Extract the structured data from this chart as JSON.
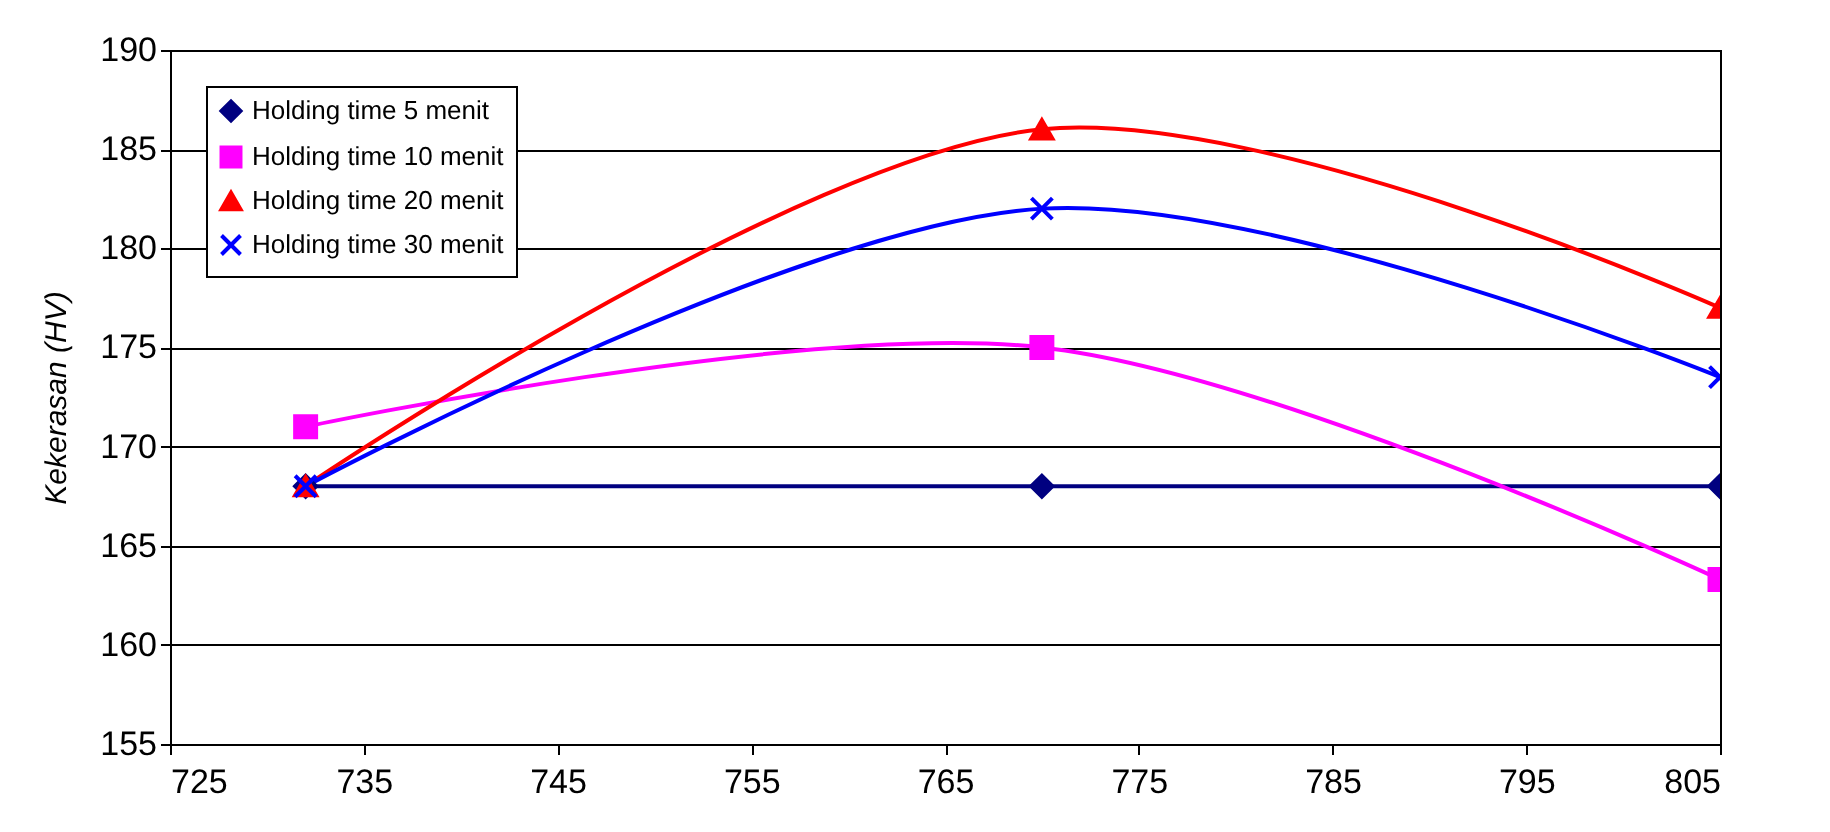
{
  "chart_data": {
    "type": "line",
    "ylabel": "Kekerasan (HV)",
    "x": [
      732,
      770,
      805
    ],
    "series": [
      {
        "name": "Holding time 5 menit",
        "color": "#000080",
        "marker": "diamond",
        "values": [
          168,
          168,
          168
        ]
      },
      {
        "name": "Holding time 10 menit",
        "color": "#ff00ff",
        "marker": "square",
        "values": [
          171,
          175,
          163.3
        ]
      },
      {
        "name": "Holding time 20 menit",
        "color": "#ff0000",
        "marker": "triangle",
        "values": [
          168,
          186,
          177
        ]
      },
      {
        "name": "Holding time 30 menit",
        "color": "#0000ff",
        "marker": "cross",
        "values": [
          168,
          182,
          173.5
        ]
      }
    ],
    "xlim": [
      725,
      805
    ],
    "xticks": [
      725,
      735,
      745,
      755,
      765,
      775,
      785,
      795,
      805
    ],
    "ylim": [
      155,
      190
    ],
    "yticks": [
      155,
      160,
      165,
      170,
      175,
      180,
      185,
      190
    ],
    "grid": "y",
    "legend": "top left",
    "line_style": "solid"
  }
}
